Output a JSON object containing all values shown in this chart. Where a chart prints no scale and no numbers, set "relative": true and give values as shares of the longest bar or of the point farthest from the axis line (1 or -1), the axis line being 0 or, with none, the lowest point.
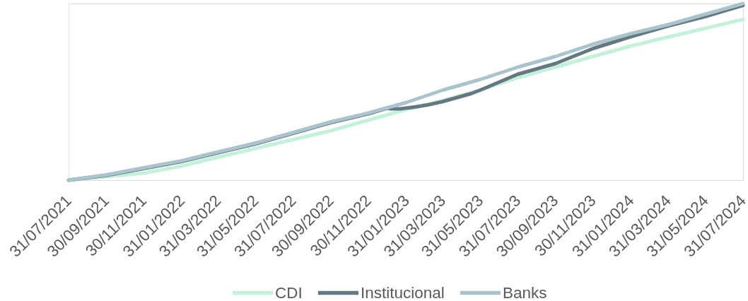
{
  "chart_data": {
    "type": "line",
    "relative": true,
    "legend": "bottom",
    "xlim": [
      "2021-07-31",
      "2024-07-31"
    ],
    "xticks": [
      {
        "value": "2021-07-31",
        "label": "31/07/2021"
      },
      {
        "value": "2021-09-30",
        "label": "30/09/2021"
      },
      {
        "value": "2021-11-30",
        "label": "30/11/2021"
      },
      {
        "value": "2022-01-31",
        "label": "31/01/2022"
      },
      {
        "value": "2022-03-31",
        "label": "31/03/2022"
      },
      {
        "value": "2022-05-31",
        "label": "31/05/2022"
      },
      {
        "value": "2022-07-31",
        "label": "31/07/2022"
      },
      {
        "value": "2022-09-30",
        "label": "30/09/2022"
      },
      {
        "value": "2022-11-30",
        "label": "30/11/2022"
      },
      {
        "value": "2023-01-31",
        "label": "31/01/2023"
      },
      {
        "value": "2023-03-31",
        "label": "31/03/2023"
      },
      {
        "value": "2023-05-31",
        "label": "31/05/2023"
      },
      {
        "value": "2023-07-31",
        "label": "31/07/2023"
      },
      {
        "value": "2023-09-30",
        "label": "30/09/2023"
      },
      {
        "value": "2023-11-30",
        "label": "30/11/2023"
      },
      {
        "value": "2024-01-31",
        "label": "31/01/2024"
      },
      {
        "value": "2024-03-31",
        "label": "31/03/2024"
      },
      {
        "value": "2024-05-31",
        "label": "31/05/2024"
      },
      {
        "value": "2024-07-31",
        "label": "31/07/2024"
      }
    ],
    "x": [
      "2021-07-31",
      "2021-09-30",
      "2021-11-30",
      "2022-01-31",
      "2022-03-31",
      "2022-05-31",
      "2022-07-31",
      "2022-09-30",
      "2022-11-30",
      "2023-01-31",
      "2023-03-31",
      "2023-05-31",
      "2023-07-31",
      "2023-09-30",
      "2023-11-30",
      "2024-01-31",
      "2024-03-31",
      "2024-05-31",
      "2024-07-31"
    ],
    "series": [
      {
        "name": "CDI",
        "color": "#c3f1d9",
        "values": [
          0,
          0.02,
          0.04,
          0.08,
          0.13,
          0.18,
          0.23,
          0.28,
          0.34,
          0.4,
          0.45,
          0.51,
          0.58,
          0.64,
          0.7,
          0.76,
          0.81,
          0.86,
          0.91
        ]
      },
      {
        "name": "Institucional",
        "color": "#637880",
        "x": [
          "2021-07-31",
          "2021-09-30",
          "2021-11-30",
          "2022-01-31",
          "2022-03-31",
          "2022-05-31",
          "2022-07-31",
          "2022-09-30",
          "2022-11-30",
          "2022-12-31",
          "2023-01-06",
          "2023-01-21",
          "2023-02-15",
          "2023-03-08",
          "2023-03-31",
          "2023-05-16",
          "2023-05-31",
          "2023-07-31",
          "2023-09-30",
          "2023-11-30",
          "2024-01-31",
          "2024-03-31",
          "2024-05-31",
          "2024-07-31"
        ],
        "values": [
          0,
          0.027,
          0.066,
          0.106,
          0.156,
          0.206,
          0.266,
          0.326,
          0.376,
          0.408,
          0.404,
          0.404,
          0.415,
          0.427,
          0.445,
          0.49,
          0.51,
          0.6,
          0.66,
          0.745,
          0.813,
          0.873,
          0.927,
          0.99
        ]
      },
      {
        "name": "Banks",
        "color": "#a9c4cc",
        "values": [
          0,
          0.03,
          0.07,
          0.11,
          0.16,
          0.21,
          0.27,
          0.33,
          0.38,
          0.44,
          0.51,
          0.57,
          0.64,
          0.7,
          0.77,
          0.83,
          0.88,
          0.94,
          1
        ]
      }
    ]
  }
}
